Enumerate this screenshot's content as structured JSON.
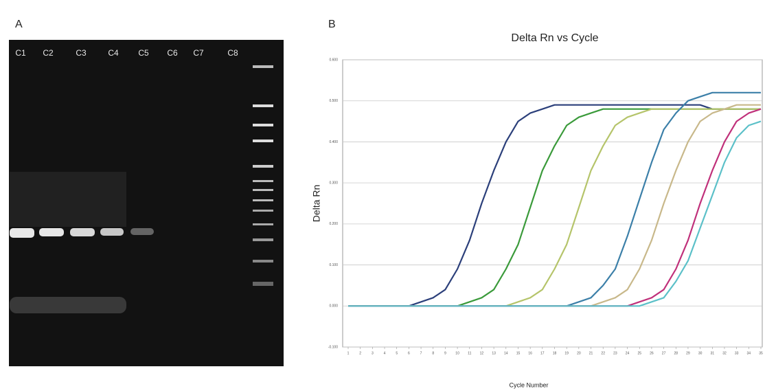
{
  "panel_a": {
    "label": "A",
    "lanes": [
      "C1",
      "C2",
      "C3",
      "C4",
      "C5",
      "C6",
      "C7",
      "C8"
    ]
  },
  "chart_data": {
    "type": "line",
    "panel_label": "B",
    "title": "Delta Rn vs Cycle",
    "x_label": "Cycle Number",
    "y_label": "Delta Rn",
    "x": [
      1,
      2,
      3,
      4,
      5,
      6,
      7,
      8,
      9,
      10,
      11,
      12,
      13,
      14,
      15,
      16,
      17,
      18,
      19,
      20,
      21,
      22,
      23,
      24,
      25,
      26,
      27,
      28,
      29,
      30,
      31,
      32,
      33,
      34,
      35
    ],
    "xlim": [
      1,
      35
    ],
    "xticks": [
      1,
      2,
      3,
      4,
      5,
      6,
      7,
      8,
      9,
      10,
      11,
      12,
      13,
      14,
      15,
      16,
      17,
      18,
      19,
      20,
      21,
      22,
      23,
      24,
      25,
      26,
      27,
      28,
      29,
      30,
      31,
      32,
      33,
      34,
      35
    ],
    "ylim": [
      -0.1,
      0.6
    ],
    "yticks": [
      {
        "value": -0.1,
        "label": "-0.100"
      },
      {
        "value": 0,
        "label": "0.000"
      },
      {
        "value": 0.1,
        "label": "0.100"
      },
      {
        "value": 0.2,
        "label": "0.200"
      },
      {
        "value": 0.3,
        "label": "0.300"
      },
      {
        "value": 0.4,
        "label": "0.400"
      },
      {
        "value": 0.5,
        "label": "0.500"
      },
      {
        "value": 0.6,
        "label": "0.600"
      }
    ],
    "grid": true,
    "series": [
      {
        "color": "#2b3f7a",
        "values": [
          0,
          0,
          0,
          0,
          0,
          0,
          0.01,
          0.02,
          0.04,
          0.09,
          0.16,
          0.25,
          0.33,
          0.4,
          0.45,
          0.47,
          0.48,
          0.49,
          0.49,
          0.49,
          0.49,
          0.49,
          0.49,
          0.49,
          0.49,
          0.49,
          0.49,
          0.49,
          0.49,
          0.49,
          0.48,
          0.48,
          0.48,
          0.48,
          0.48
        ]
      },
      {
        "color": "#3a9a3a",
        "values": [
          0,
          0,
          0,
          0,
          0,
          0,
          0,
          0,
          0,
          0,
          0.01,
          0.02,
          0.04,
          0.09,
          0.15,
          0.24,
          0.33,
          0.39,
          0.44,
          0.46,
          0.47,
          0.48,
          0.48,
          0.48,
          0.48,
          0.48,
          0.48,
          0.48,
          0.48,
          0.48,
          0.48,
          0.48,
          0.48,
          0.48,
          0.48
        ]
      },
      {
        "color": "#b5c46a",
        "values": [
          0,
          0,
          0,
          0,
          0,
          0,
          0,
          0,
          0,
          0,
          0,
          0,
          0,
          0,
          0.01,
          0.02,
          0.04,
          0.09,
          0.15,
          0.24,
          0.33,
          0.39,
          0.44,
          0.46,
          0.47,
          0.48,
          0.48,
          0.48,
          0.48,
          0.48,
          0.48,
          0.48,
          0.48,
          0.48,
          0.48
        ]
      },
      {
        "color": "#3b7fa8",
        "values": [
          0,
          0,
          0,
          0,
          0,
          0,
          0,
          0,
          0,
          0,
          0,
          0,
          0,
          0,
          0,
          0,
          0,
          0,
          0,
          0.01,
          0.02,
          0.05,
          0.09,
          0.17,
          0.26,
          0.35,
          0.43,
          0.47,
          0.5,
          0.51,
          0.52,
          0.52,
          0.52,
          0.52,
          0.52
        ]
      },
      {
        "color": "#c8b88a",
        "values": [
          0,
          0,
          0,
          0,
          0,
          0,
          0,
          0,
          0,
          0,
          0,
          0,
          0,
          0,
          0,
          0,
          0,
          0,
          0,
          0,
          0,
          0.01,
          0.02,
          0.04,
          0.09,
          0.16,
          0.25,
          0.33,
          0.4,
          0.45,
          0.47,
          0.48,
          0.49,
          0.49,
          0.49
        ]
      },
      {
        "color": "#c0307a",
        "values": [
          0,
          0,
          0,
          0,
          0,
          0,
          0,
          0,
          0,
          0,
          0,
          0,
          0,
          0,
          0,
          0,
          0,
          0,
          0,
          0,
          0,
          0,
          0,
          0,
          0.01,
          0.02,
          0.04,
          0.09,
          0.16,
          0.25,
          0.33,
          0.4,
          0.45,
          0.47,
          0.48
        ]
      },
      {
        "color": "#5bc0c8",
        "values": [
          0,
          0,
          0,
          0,
          0,
          0,
          0,
          0,
          0,
          0,
          0,
          0,
          0,
          0,
          0,
          0,
          0,
          0,
          0,
          0,
          0,
          0,
          0,
          0,
          0,
          0.01,
          0.02,
          0.06,
          0.11,
          0.19,
          0.27,
          0.35,
          0.41,
          0.44,
          0.45
        ]
      }
    ]
  }
}
